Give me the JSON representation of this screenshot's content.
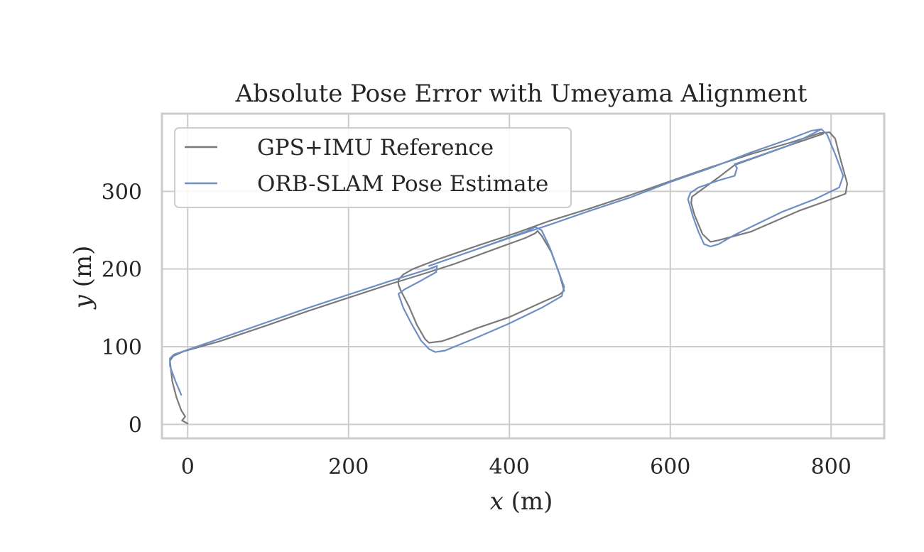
{
  "chart_data": {
    "type": "line",
    "title": "Absolute Pose Error with Umeyama Alignment",
    "xlabel": "x (m)",
    "xlabel_var": "x",
    "xlabel_unit": "(m)",
    "ylabel": "y (m)",
    "ylabel_var": "y",
    "ylabel_unit": "(m)",
    "xlim": [
      -32,
      866
    ],
    "ylim": [
      -18,
      400
    ],
    "xticks": [
      0,
      200,
      400,
      600,
      800
    ],
    "yticks": [
      0,
      100,
      200,
      300
    ],
    "xtick_labels": [
      "0",
      "200",
      "400",
      "600",
      "800"
    ],
    "ytick_labels": [
      "0",
      "100",
      "200",
      "300"
    ],
    "grid": true,
    "legend_position": "top-left",
    "series": [
      {
        "name": "GPS+IMU Reference",
        "color": "#7a7a7a",
        "points": [
          [
            0,
            1
          ],
          [
            -7,
            5
          ],
          [
            -3,
            10
          ],
          [
            -8,
            18
          ],
          [
            -14,
            35
          ],
          [
            -19,
            55
          ],
          [
            -21,
            72
          ],
          [
            -22,
            82
          ],
          [
            -18,
            88
          ],
          [
            -5,
            94
          ],
          [
            40,
            107
          ],
          [
            100,
            128
          ],
          [
            150,
            146
          ],
          [
            200,
            163
          ],
          [
            250,
            180
          ],
          [
            300,
            196
          ],
          [
            330,
            206
          ],
          [
            380,
            225
          ],
          [
            420,
            240
          ],
          [
            432,
            246
          ],
          [
            435,
            249
          ],
          [
            440,
            243
          ],
          [
            452,
            222
          ],
          [
            462,
            194
          ],
          [
            468,
            172
          ],
          [
            462,
            167
          ],
          [
            440,
            157
          ],
          [
            400,
            138
          ],
          [
            360,
            124
          ],
          [
            330,
            112
          ],
          [
            316,
            107
          ],
          [
            300,
            105
          ],
          [
            295,
            110
          ],
          [
            285,
            128
          ],
          [
            275,
            152
          ],
          [
            265,
            172
          ],
          [
            262,
            180
          ],
          [
            262,
            186
          ],
          [
            268,
            193
          ],
          [
            280,
            200
          ],
          [
            310,
            212
          ],
          [
            360,
            230
          ],
          [
            410,
            247
          ],
          [
            450,
            262
          ],
          [
            500,
            278
          ],
          [
            550,
            295
          ],
          [
            600,
            313
          ],
          [
            650,
            331
          ],
          [
            700,
            348
          ],
          [
            750,
            363
          ],
          [
            786,
            375
          ],
          [
            798,
            376
          ],
          [
            805,
            368
          ],
          [
            812,
            340
          ],
          [
            820,
            310
          ],
          [
            818,
            297
          ],
          [
            790,
            286
          ],
          [
            760,
            275
          ],
          [
            700,
            248
          ],
          [
            660,
            237
          ],
          [
            650,
            235
          ],
          [
            640,
            245
          ],
          [
            630,
            270
          ],
          [
            626,
            285
          ],
          [
            627,
            293
          ],
          [
            640,
            303
          ],
          [
            660,
            318
          ],
          [
            680,
            334
          ],
          [
            710,
            345
          ],
          [
            750,
            360
          ],
          [
            790,
            374
          ]
        ]
      },
      {
        "name": "ORB-SLAM Pose Estimate",
        "color": "#6f8fc4",
        "points": [
          [
            -8,
            38
          ],
          [
            -15,
            55
          ],
          [
            -22,
            75
          ],
          [
            -22,
            85
          ],
          [
            -17,
            90
          ],
          [
            0,
            96
          ],
          [
            50,
            114
          ],
          [
            100,
            132
          ],
          [
            150,
            150
          ],
          [
            200,
            167
          ],
          [
            250,
            184
          ],
          [
            300,
            200
          ],
          [
            310,
            204
          ],
          [
            309,
            196
          ],
          [
            290,
            185
          ],
          [
            270,
            174
          ],
          [
            262,
            168
          ],
          [
            268,
            150
          ],
          [
            278,
            130
          ],
          [
            290,
            108
          ],
          [
            300,
            97
          ],
          [
            308,
            93
          ],
          [
            320,
            95
          ],
          [
            360,
            112
          ],
          [
            400,
            130
          ],
          [
            440,
            150
          ],
          [
            465,
            165
          ],
          [
            468,
            177
          ],
          [
            460,
            200
          ],
          [
            450,
            228
          ],
          [
            440,
            250
          ],
          [
            432,
            254
          ],
          [
            420,
            248
          ],
          [
            350,
            222
          ],
          [
            300,
            204
          ],
          [
            350,
            222
          ],
          [
            400,
            240
          ],
          [
            450,
            257
          ],
          [
            500,
            275
          ],
          [
            550,
            292
          ],
          [
            600,
            312
          ],
          [
            650,
            330
          ],
          [
            700,
            350
          ],
          [
            750,
            368
          ],
          [
            775,
            378
          ],
          [
            788,
            380
          ],
          [
            795,
            373
          ],
          [
            805,
            348
          ],
          [
            815,
            320
          ],
          [
            810,
            305
          ],
          [
            780,
            290
          ],
          [
            740,
            274
          ],
          [
            700,
            254
          ],
          [
            680,
            244
          ],
          [
            660,
            232
          ],
          [
            650,
            229
          ],
          [
            642,
            232
          ],
          [
            635,
            248
          ],
          [
            628,
            268
          ],
          [
            622,
            290
          ],
          [
            625,
            298
          ],
          [
            635,
            305
          ],
          [
            660,
            314
          ],
          [
            680,
            320
          ],
          [
            683,
            330
          ],
          [
            680,
            335
          ],
          [
            700,
            342
          ],
          [
            750,
            360
          ],
          [
            788,
            380
          ]
        ]
      }
    ]
  }
}
